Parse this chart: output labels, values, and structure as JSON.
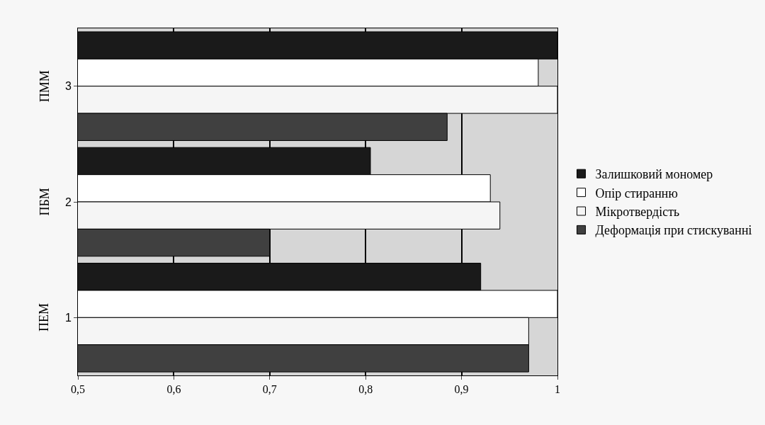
{
  "chart_data": {
    "type": "bar",
    "orientation": "horizontal",
    "categories": [
      "3",
      "2",
      "1"
    ],
    "series": [
      {
        "name": "Залишковий мономер",
        "color": "#1a1a1a",
        "values": [
          1.0,
          0.805,
          0.92
        ]
      },
      {
        "name": "Опір стиранню",
        "color": "#ffffff",
        "values": [
          0.98,
          0.93,
          1.0
        ]
      },
      {
        "name": "Мікротвердість",
        "color": "#f5f5f5",
        "values": [
          1.0,
          0.94,
          0.97
        ]
      },
      {
        "name": "Деформація при стискуванні",
        "color": "#404040",
        "values": [
          0.885,
          0.7,
          0.97
        ]
      }
    ],
    "annotations": [
      "ПММ",
      "ПБМ",
      "ПЕМ"
    ],
    "xlim": [
      0.5,
      1
    ],
    "xticks": [
      {
        "value": 0.5,
        "label": "0,5"
      },
      {
        "value": 0.6,
        "label": "0,6"
      },
      {
        "value": 0.7,
        "label": "0,7"
      },
      {
        "value": 0.8,
        "label": "0,8"
      },
      {
        "value": 0.9,
        "label": "0,9"
      },
      {
        "value": 1,
        "label": "1"
      }
    ],
    "grid": "x",
    "legend": "right"
  }
}
